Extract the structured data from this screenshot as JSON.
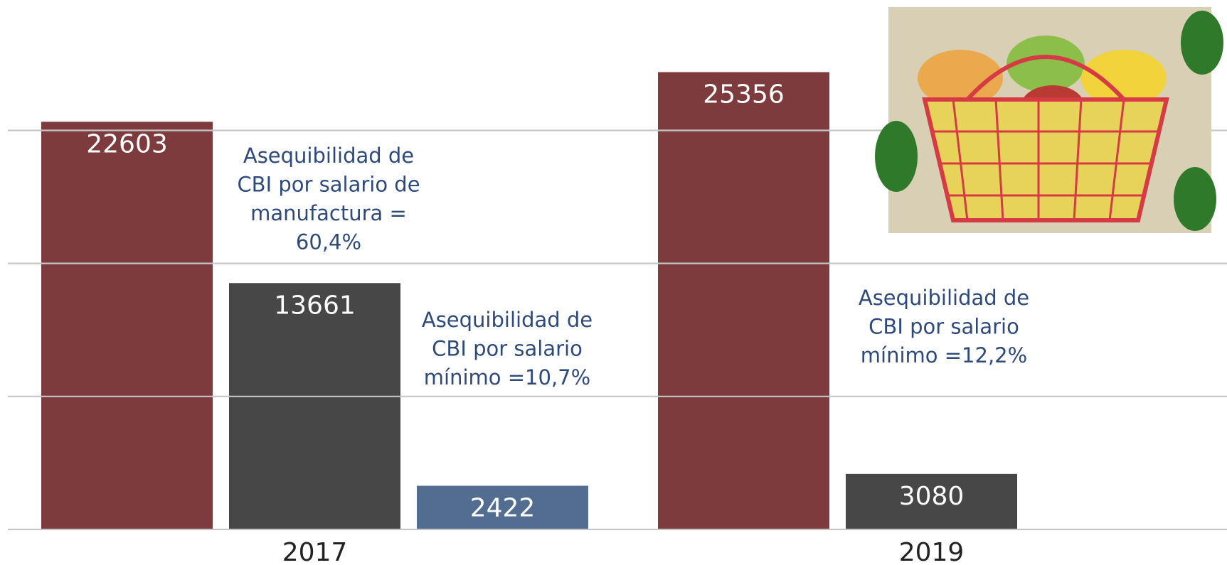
{
  "chart_data": {
    "type": "bar",
    "categories": [
      "2017",
      "2019"
    ],
    "series": [
      {
        "color": "#7d3b3d",
        "values": [
          22603,
          25356
        ]
      },
      {
        "color": "#474747",
        "values": [
          13661,
          3080
        ]
      },
      {
        "color": "#526d8f",
        "values": [
          2422,
          null
        ]
      }
    ],
    "ylim": [
      0,
      29000
    ],
    "yticks": [
      0,
      7375,
      14750,
      22125
    ],
    "grid": true,
    "annotations": [
      {
        "lines": [
          "Asequibilidad de",
          "CBI por salario de",
          "manufactura =",
          "60,4%"
        ]
      },
      {
        "lines": [
          "Asequibilidad de",
          "CBI por salario",
          "mínimo =10,7%"
        ]
      },
      {
        "lines": [
          "Asequibilidad de",
          "CBI por salario",
          "mínimo =12,2%"
        ]
      }
    ]
  }
}
